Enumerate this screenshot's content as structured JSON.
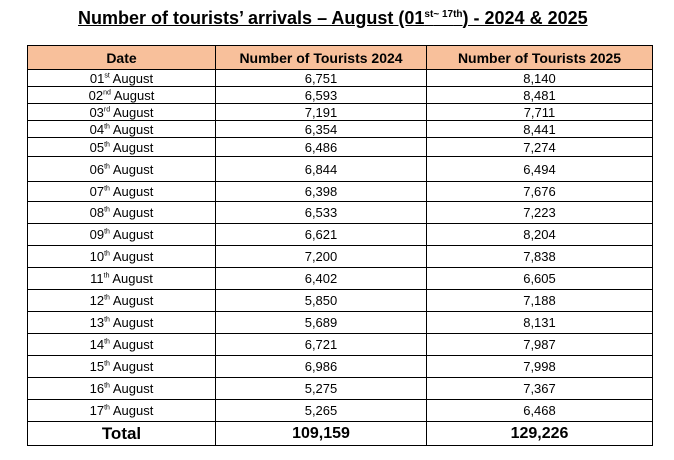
{
  "title": {
    "prefix": "Number of tourists’ arrivals – August (01",
    "sup1": "st",
    "mid": "~ 17",
    "sup2": "th",
    "suffix": ") - 2024 & 2025"
  },
  "table": {
    "headers": [
      "Date",
      "Number of Tourists 2024",
      "Number of Tourists 2025"
    ],
    "rows": [
      {
        "day": "01",
        "sfx": "st",
        "month": "August",
        "v2024": "6,751",
        "v2025": "8,140"
      },
      {
        "day": "02",
        "sfx": "nd",
        "month": "August",
        "v2024": "6,593",
        "v2025": "8,481"
      },
      {
        "day": "03",
        "sfx": "rd",
        "month": "August",
        "v2024": "7,191",
        "v2025": "7,711"
      },
      {
        "day": "04",
        "sfx": "th",
        "month": "August",
        "v2024": "6,354",
        "v2025": "8,441"
      },
      {
        "day": "05",
        "sfx": "th",
        "month": "August",
        "v2024": "6,486",
        "v2025": "7,274"
      },
      {
        "day": "06",
        "sfx": "th",
        "month": "August",
        "v2024": "6,844",
        "v2025": "6,494"
      },
      {
        "day": "07",
        "sfx": "th",
        "month": "August",
        "v2024": "6,398",
        "v2025": "7,676"
      },
      {
        "day": "08",
        "sfx": "th",
        "month": "August",
        "v2024": "6,533",
        "v2025": "7,223"
      },
      {
        "day": "09",
        "sfx": "th",
        "month": "August",
        "v2024": "6,621",
        "v2025": "8,204"
      },
      {
        "day": "10",
        "sfx": "th",
        "month": "August",
        "v2024": "7,200",
        "v2025": "7,838"
      },
      {
        "day": "11",
        "sfx": "th",
        "month": "August",
        "v2024": "6,402",
        "v2025": "6,605"
      },
      {
        "day": "12",
        "sfx": "th",
        "month": "August",
        "v2024": "5,850",
        "v2025": "7,188"
      },
      {
        "day": "13",
        "sfx": "th",
        "month": "August",
        "v2024": "5,689",
        "v2025": "8,131"
      },
      {
        "day": "14",
        "sfx": "th",
        "month": "August",
        "v2024": "6,721",
        "v2025": "7,987"
      },
      {
        "day": "15",
        "sfx": "th",
        "month": "August",
        "v2024": "6,986",
        "v2025": "7,998"
      },
      {
        "day": "16",
        "sfx": "th",
        "month": "August",
        "v2024": "5,275",
        "v2025": "7,367"
      },
      {
        "day": "17",
        "sfx": "th",
        "month": "August",
        "v2024": "5,265",
        "v2025": "6,468"
      }
    ],
    "total": {
      "label": "Total",
      "v2024": "109,159",
      "v2025": "129,226"
    },
    "header_color": "#f8c09b"
  }
}
